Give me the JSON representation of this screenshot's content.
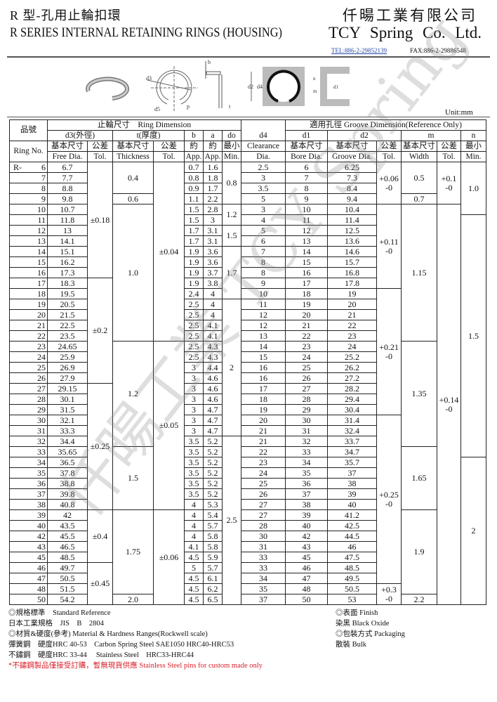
{
  "header": {
    "title_cn": "R 型-孔用止輪扣環",
    "title_en": "R SERIES INTERNAL RETAINING RINGS (HOUSING)",
    "company_cn": "仟暘工業有限公司",
    "company_en": "TCY  Spring Co. Ltd.",
    "tel": "TEL:886-2-29852139",
    "fax": "FAX:886-2-29886548"
  },
  "diagram": {
    "labels": [
      "d3",
      "d5",
      "p",
      "b",
      "t",
      "d2",
      "d4",
      "n",
      "m",
      "d1"
    ]
  },
  "unit": "Unit:mm",
  "watermark": "仟暘工業 TCY Spring",
  "table": {
    "head": {
      "pinhao": "品號",
      "ring_dim": "止輪尺寸　Ring Dimension",
      "d4": "d4",
      "groove_dim": "適用孔徑 Groove Dimension(Reference Only)",
      "d3": "d3(外徑)",
      "t": "t(厚度)",
      "b": "b",
      "a": "a",
      "do": "do",
      "d1": "d1",
      "d2": "d2",
      "m": "m",
      "n": "n",
      "ring_no": "Ring No.",
      "row3": [
        "基本尺寸",
        "公差",
        "基本尺寸",
        "公差",
        "約",
        "約",
        "最小",
        "Clearance",
        "基本尺寸",
        "基本尺寸",
        "公差",
        "基本尺寸",
        "公差",
        "最小"
      ],
      "row4": [
        "Free Dia.",
        "Tol.",
        "Thickness",
        "Tol.",
        "App.",
        "App.",
        "Min.",
        "Dia.",
        "Bore Dia.",
        "Groove Dia.",
        "Tol.",
        "Width",
        "Tol.",
        "Min."
      ]
    },
    "prefix": "R-",
    "rows": [
      {
        "no": "6",
        "d3": "6.7",
        "b": "0.7",
        "a": "1.6",
        "d4": "2.5",
        "d1": "6",
        "d2": "6.25"
      },
      {
        "no": "7",
        "d3": "7.7",
        "b": "0.8",
        "a": "1.8",
        "d4": "3",
        "d1": "7",
        "d2": "7.3"
      },
      {
        "no": "8",
        "d3": "8.8",
        "b": "0.9",
        "a": "1.7",
        "d4": "3.5",
        "d1": "8",
        "d2": "8.4"
      },
      {
        "no": "9",
        "d3": "9.8",
        "b": "1.1",
        "a": "2.2",
        "d4": "5",
        "d1": "9",
        "d2": "9.4"
      },
      {
        "no": "10",
        "d3": "10.7",
        "b": "1.5",
        "a": "2.8",
        "d4": "3",
        "d1": "10",
        "d2": "10.4"
      },
      {
        "no": "11",
        "d3": "11.8",
        "b": "1.5",
        "a": "3",
        "d4": "4",
        "d1": "11",
        "d2": "11.4"
      },
      {
        "no": "12",
        "d3": "13",
        "b": "1.7",
        "a": "3.1",
        "d4": "5",
        "d1": "12",
        "d2": "12.5"
      },
      {
        "no": "13",
        "d3": "14.1",
        "b": "1.7",
        "a": "3.1",
        "d4": "6",
        "d1": "13",
        "d2": "13.6"
      },
      {
        "no": "14",
        "d3": "15.1",
        "b": "1.9",
        "a": "3.6",
        "d4": "7",
        "d1": "14",
        "d2": "14.6"
      },
      {
        "no": "15",
        "d3": "16.2",
        "b": "1.9",
        "a": "3.6",
        "d4": "8",
        "d1": "15",
        "d2": "15.7"
      },
      {
        "no": "16",
        "d3": "17.3",
        "b": "1.9",
        "a": "3.7",
        "d4": "8",
        "d1": "16",
        "d2": "16.8"
      },
      {
        "no": "17",
        "d3": "18.3",
        "b": "1.9",
        "a": "3.8",
        "d4": "9",
        "d1": "17",
        "d2": "17.8"
      },
      {
        "no": "18",
        "d3": "19.5",
        "b": "2.4",
        "a": "4",
        "d4": "10",
        "d1": "18",
        "d2": "19"
      },
      {
        "no": "19",
        "d3": "20.5",
        "b": "2.5",
        "a": "4",
        "d4": "11",
        "d1": "19",
        "d2": "20"
      },
      {
        "no": "20",
        "d3": "21.5",
        "b": "2.5",
        "a": "4",
        "d4": "12",
        "d1": "20",
        "d2": "21"
      },
      {
        "no": "21",
        "d3": "22.5",
        "b": "2.5",
        "a": "4.1",
        "d4": "12",
        "d1": "21",
        "d2": "22"
      },
      {
        "no": "22",
        "d3": "23.5",
        "b": "2.5",
        "a": "4.1",
        "d4": "13",
        "d1": "22",
        "d2": "23"
      },
      {
        "no": "23",
        "d3": "24.65",
        "b": "2.5",
        "a": "4.3",
        "d4": "14",
        "d1": "23",
        "d2": "24"
      },
      {
        "no": "24",
        "d3": "25.9",
        "b": "2.5",
        "a": "4.3",
        "d4": "15",
        "d1": "24",
        "d2": "25.2"
      },
      {
        "no": "25",
        "d3": "26.9",
        "b": "3",
        "a": "4.4",
        "d4": "16",
        "d1": "25",
        "d2": "26.2"
      },
      {
        "no": "26",
        "d3": "27.9",
        "b": "3",
        "a": "4.6",
        "d4": "16",
        "d1": "26",
        "d2": "27.2"
      },
      {
        "no": "27",
        "d3": "29.15",
        "b": "3",
        "a": "4.6",
        "d4": "17",
        "d1": "27",
        "d2": "28.2"
      },
      {
        "no": "28",
        "d3": "30.1",
        "b": "3",
        "a": "4.6",
        "d4": "18",
        "d1": "28",
        "d2": "29.4"
      },
      {
        "no": "29",
        "d3": "31.5",
        "b": "3",
        "a": "4.7",
        "d4": "19",
        "d1": "29",
        "d2": "30.4"
      },
      {
        "no": "30",
        "d3": "32.1",
        "b": "3",
        "a": "4.7",
        "d4": "20",
        "d1": "30",
        "d2": "31.4"
      },
      {
        "no": "31",
        "d3": "33.3",
        "b": "3",
        "a": "4.7",
        "d4": "21",
        "d1": "31",
        "d2": "32.4"
      },
      {
        "no": "32",
        "d3": "34.4",
        "b": "3.5",
        "a": "5.2",
        "d4": "21",
        "d1": "32",
        "d2": "33.7"
      },
      {
        "no": "33",
        "d3": "35.65",
        "b": "3.5",
        "a": "5.2",
        "d4": "22",
        "d1": "33",
        "d2": "34.7"
      },
      {
        "no": "34",
        "d3": "36.5",
        "b": "3.5",
        "a": "5.2",
        "d4": "23",
        "d1": "34",
        "d2": "35.7"
      },
      {
        "no": "35",
        "d3": "37.8",
        "b": "3.5",
        "a": "5.2",
        "d4": "24",
        "d1": "35",
        "d2": "37"
      },
      {
        "no": "36",
        "d3": "38.8",
        "b": "3.5",
        "a": "5.2",
        "d4": "25",
        "d1": "36",
        "d2": "38"
      },
      {
        "no": "37",
        "d3": "39.8",
        "b": "3.5",
        "a": "5.2",
        "d4": "26",
        "d1": "37",
        "d2": "39"
      },
      {
        "no": "38",
        "d3": "40.8",
        "b": "4",
        "a": "5.3",
        "d4": "27",
        "d1": "38",
        "d2": "40"
      },
      {
        "no": "39",
        "d3": "42",
        "b": "4",
        "a": "5.4",
        "d4": "27",
        "d1": "39",
        "d2": "41.2"
      },
      {
        "no": "40",
        "d3": "43.5",
        "b": "4",
        "a": "5.7",
        "d4": "28",
        "d1": "40",
        "d2": "42.5"
      },
      {
        "no": "42",
        "d3": "45.5",
        "b": "4",
        "a": "5.8",
        "d4": "30",
        "d1": "42",
        "d2": "44.5"
      },
      {
        "no": "43",
        "d3": "46.5",
        "b": "4.1",
        "a": "5.8",
        "d4": "31",
        "d1": "43",
        "d2": "46"
      },
      {
        "no": "45",
        "d3": "48.5",
        "b": "4.5",
        "a": "5.9",
        "d4": "33",
        "d1": "45",
        "d2": "47.5"
      },
      {
        "no": "46",
        "d3": "49.7",
        "b": "5",
        "a": "5.7",
        "d4": "33",
        "d1": "46",
        "d2": "48.5"
      },
      {
        "no": "47",
        "d3": "50.5",
        "b": "4.5",
        "a": "6.1",
        "d4": "34",
        "d1": "47",
        "d2": "49.5"
      },
      {
        "no": "48",
        "d3": "51.5",
        "b": "4.5",
        "a": "6.2",
        "d4": "35",
        "d1": "48",
        "d2": "50.5"
      },
      {
        "no": "50",
        "d3": "54.2",
        "b": "4.5",
        "a": "6.5",
        "d4": "37",
        "d1": "50",
        "d2": "53"
      }
    ],
    "merged": {
      "d3_tol": [
        {
          "value": "±0.18",
          "rows": 11
        },
        {
          "value": "±0.2",
          "rows": 10
        },
        {
          "value": "±0.25",
          "rows": 12
        },
        {
          "value": "±0.4",
          "rows": 5
        },
        {
          "value": "±0.45",
          "rows": 4
        }
      ],
      "thickness": [
        {
          "value": "0.4",
          "rows": 3
        },
        {
          "value": "0.6",
          "rows": 1
        },
        {
          "value": "1.0",
          "rows": 13
        },
        {
          "value": "1.2",
          "rows": 10
        },
        {
          "value": "1.5",
          "rows": 6
        },
        {
          "value": "1.75",
          "rows": 8
        },
        {
          "value": "2.0",
          "rows": 1
        }
      ],
      "t_tol": [
        {
          "value": "±0.04",
          "rows": 17
        },
        {
          "value": "±0.05",
          "rows": 16
        },
        {
          "value": "±0.06",
          "rows": 9
        }
      ],
      "do": [
        {
          "value": "0.8",
          "rows": 4
        },
        {
          "value": "1.2",
          "rows": 2
        },
        {
          "value": "1.5",
          "rows": 2
        },
        {
          "value": "1.7",
          "rows": 5
        },
        {
          "value": "2",
          "rows": 13
        },
        {
          "value": "2.5",
          "rows": 16
        }
      ],
      "d2_tol": [
        {
          "value": "+0.06\n-0",
          "rows": 4
        },
        {
          "value": "+0.11\n-0",
          "rows": 8
        },
        {
          "value": "+0.21\n-0",
          "rows": 12
        },
        {
          "value": "+0.25\n-0",
          "rows": 16
        },
        {
          "value": "+0.3\n-0",
          "rows": 2
        }
      ],
      "m_width": [
        {
          "value": "0.5",
          "rows": 3
        },
        {
          "value": "0.7",
          "rows": 1
        },
        {
          "value": "1.15",
          "rows": 13
        },
        {
          "value": "1.35",
          "rows": 10
        },
        {
          "value": "1.65",
          "rows": 6
        },
        {
          "value": "1.9",
          "rows": 8
        },
        {
          "value": "2.2",
          "rows": 1
        }
      ],
      "m_tol": [
        {
          "value": "+0.1\n-0",
          "rows": 4
        },
        {
          "value": "+0.14\n-0",
          "rows": 38
        }
      ],
      "n": [
        {
          "value": "1.0",
          "rows": 5
        },
        {
          "value": "1.5",
          "rows": 23
        },
        {
          "value": "2",
          "rows": 14
        }
      ]
    }
  },
  "footer": {
    "left": [
      "◎規格標準　Standard Reference",
      "日本工業規格　JIS　B　2804",
      "◎材質&硬度(參考) Material & Hardness Ranges(Rockwell scale)",
      "彈簧鋼　硬度HRC 40-53　Carbon Spring Steel SAE1050 HRC40-HRC53",
      "不鏽鋼　硬度HRC 33-44　 Stainless Steel　HRC33-HRC44"
    ],
    "note": "*不鏽鋼製品僅接受訂購，暫無現貨供應 Stainless Steel pins for custom made only",
    "right": [
      "◎表面 Finish",
      "染黑 Black Oxide",
      "◎包裝方式 Packaging",
      "散裝 Bulk"
    ],
    "note_color": "#d8202a"
  }
}
